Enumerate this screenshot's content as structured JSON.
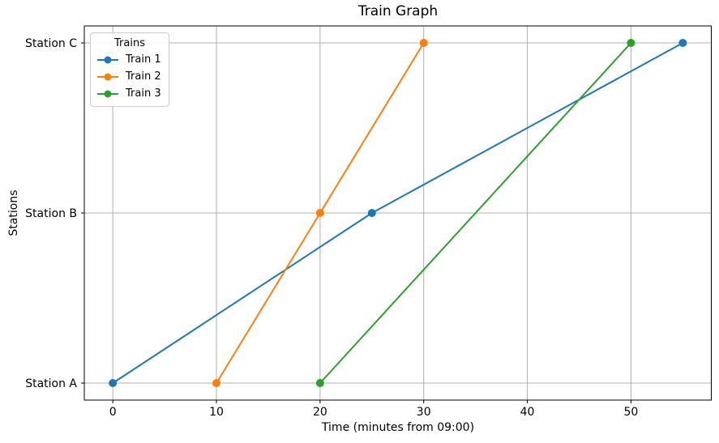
{
  "chart_data": {
    "type": "line",
    "title": "Train Graph",
    "xlabel": "Time (minutes from 09:00)",
    "ylabel": "Stations",
    "x_ticks": [
      0,
      10,
      20,
      30,
      40,
      50
    ],
    "y_categories": [
      "Station A",
      "Station B",
      "Station C"
    ],
    "xlim": [
      -2.75,
      57.75
    ],
    "ylim": [
      -0.1,
      2.1
    ],
    "grid": true,
    "grid_color": "#b0b0b0",
    "spine_color": "#000000",
    "marker": "circle",
    "legend": {
      "title": "Trains",
      "position": "upper-left"
    },
    "series": [
      {
        "name": "Train 1",
        "color": "#1f77b4",
        "points": [
          [
            0,
            "Station A"
          ],
          [
            25,
            "Station B"
          ],
          [
            55,
            "Station C"
          ]
        ]
      },
      {
        "name": "Train 2",
        "color": "#ff7f0e",
        "points": [
          [
            10,
            "Station A"
          ],
          [
            20,
            "Station B"
          ],
          [
            30,
            "Station C"
          ]
        ]
      },
      {
        "name": "Train 3",
        "color": "#2ca02c",
        "points": [
          [
            20,
            "Station A"
          ],
          [
            50,
            "Station C"
          ]
        ]
      }
    ]
  }
}
